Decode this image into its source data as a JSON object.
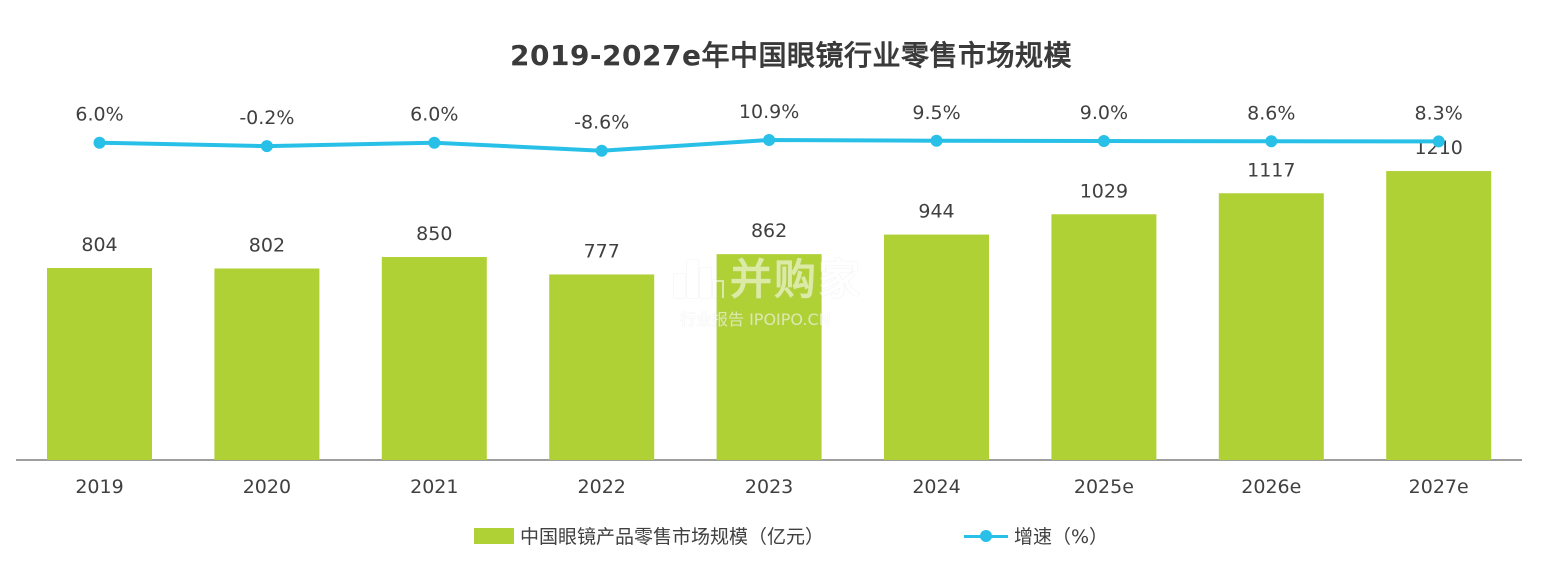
{
  "chart_data": {
    "type": "bar",
    "title": "2019-2027e年中国眼镜行业零售市场规模",
    "categories": [
      "2019",
      "2020",
      "2021",
      "2022",
      "2023",
      "2024",
      "2025e",
      "2026e",
      "2027e"
    ],
    "series": [
      {
        "name": "中国眼镜产品零售市场规模（亿元）",
        "type": "bar",
        "values": [
          804,
          802,
          850,
          777,
          862,
          944,
          1029,
          1117,
          1210
        ],
        "labels": [
          "804",
          "802",
          "850",
          "777",
          "862",
          "944",
          "1029",
          "1117",
          "1210"
        ],
        "color": "#b0d135"
      },
      {
        "name": "增速（%）",
        "type": "line",
        "values": [
          6.0,
          -0.2,
          6.0,
          -8.6,
          10.9,
          9.5,
          9.0,
          8.6,
          8.3
        ],
        "labels": [
          "6.0%",
          "-0.2%",
          "6.0%",
          "-8.6%",
          "10.9%",
          "9.5%",
          "9.0%",
          "8.6%",
          "8.3%"
        ],
        "color": "#29c0e8"
      }
    ],
    "grid": false,
    "legend_position": "bottom"
  },
  "watermark": {
    "main": "并购家",
    "sub": "行业报告 IPOIPO.CN"
  }
}
